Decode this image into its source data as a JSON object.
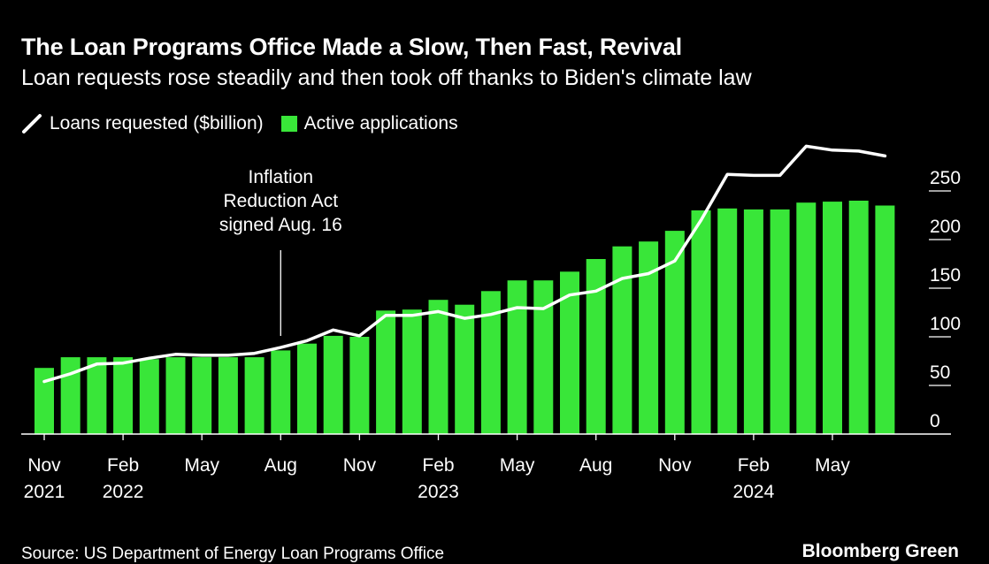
{
  "header": {
    "title": "The Loan Programs Office Made a Slow, Then Fast, Revival",
    "subtitle": "Loan requests rose steadily and then took off thanks to Biden's climate law"
  },
  "legend": {
    "line_label": "Loans requested ($billion)",
    "bar_label": "Active applications"
  },
  "footer": {
    "source": "Source: US Department of Energy Loan Programs Office",
    "brand": "Bloomberg Green"
  },
  "colors": {
    "background": "#000000",
    "bar": "#39e639",
    "line": "#ffffff",
    "grid": "#ffffff"
  },
  "chart_data": {
    "type": "bar",
    "x_tick_labels": [
      {
        "index": 0,
        "line1": "Nov",
        "line2": "2021"
      },
      {
        "index": 3,
        "line1": "Feb",
        "line2": "2022"
      },
      {
        "index": 6,
        "line1": "May",
        "line2": ""
      },
      {
        "index": 9,
        "line1": "Aug",
        "line2": ""
      },
      {
        "index": 12,
        "line1": "Nov",
        "line2": ""
      },
      {
        "index": 15,
        "line1": "Feb",
        "line2": "2023"
      },
      {
        "index": 18,
        "line1": "May",
        "line2": ""
      },
      {
        "index": 21,
        "line1": "Aug",
        "line2": ""
      },
      {
        "index": 24,
        "line1": "Nov",
        "line2": ""
      },
      {
        "index": 27,
        "line1": "Feb",
        "line2": "2024"
      },
      {
        "index": 30,
        "line1": "May",
        "line2": ""
      }
    ],
    "y_ticks": [
      0,
      50,
      100,
      150,
      200,
      250
    ],
    "ylim": [
      0,
      290
    ],
    "grid": true,
    "series": [
      {
        "name": "Active applications",
        "type": "bar",
        "values": [
          68,
          79,
          79,
          79,
          77,
          79,
          79,
          79,
          79,
          86,
          93,
          101,
          100,
          127,
          128,
          138,
          133,
          147,
          158,
          158,
          167,
          180,
          193,
          198,
          209,
          230,
          232,
          231,
          231,
          238,
          239,
          240,
          235
        ]
      },
      {
        "name": "Loans requested ($billion)",
        "type": "line",
        "values": [
          54,
          62,
          72,
          73,
          78,
          82,
          81,
          81,
          83,
          89,
          96,
          107,
          101,
          122,
          122,
          126,
          119,
          123,
          130,
          129,
          143,
          147,
          160,
          165,
          178,
          220,
          267,
          266,
          266,
          296,
          292,
          291,
          286
        ]
      }
    ],
    "annotations": [
      {
        "index": 9,
        "line1": "Inflation",
        "line2": "Reduction Act",
        "line3": "signed Aug. 16"
      }
    ]
  }
}
